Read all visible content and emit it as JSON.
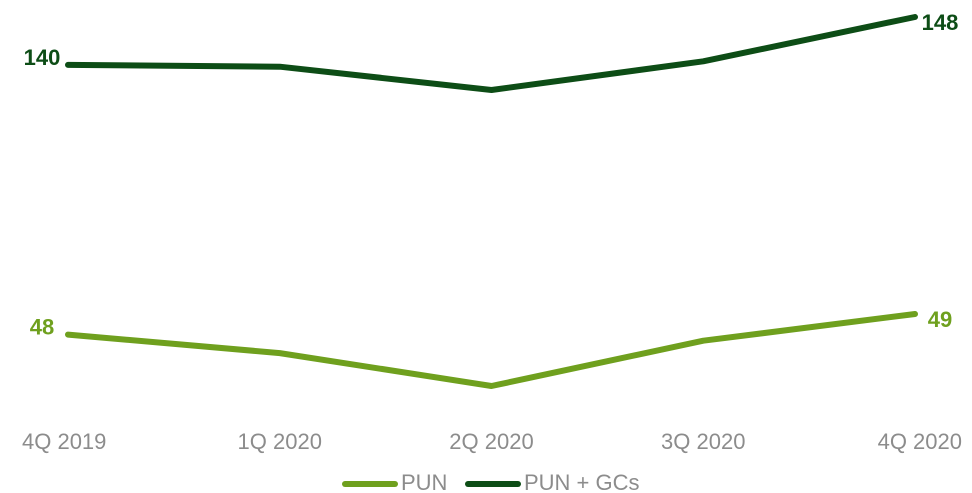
{
  "chart_data": {
    "type": "line",
    "categories": [
      "4Q 2019",
      "1Q 2020",
      "2Q 2020",
      "3Q 2020",
      "4Q 2020"
    ],
    "series": [
      {
        "name": "PUN",
        "values": [
          48,
          47.1,
          45.5,
          47.7,
          49
        ],
        "color": "#6fa01e",
        "labels": [
          "48",
          "",
          "",
          "",
          "49"
        ]
      },
      {
        "name": "PUN + GCs",
        "values": [
          140,
          139.7,
          135.8,
          140.6,
          148
        ],
        "color": "#0d4d16",
        "labels": [
          "140",
          "",
          "",
          "",
          "148"
        ]
      }
    ],
    "legend_position": "bottom",
    "grid": false,
    "y_axis_visible": false
  }
}
